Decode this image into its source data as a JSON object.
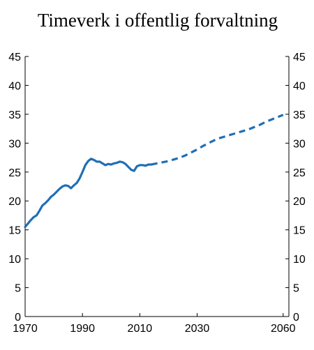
{
  "chart_data": {
    "type": "line",
    "title": "Timeverk i offentlig forvaltning",
    "xlabel": "",
    "ylabel": "",
    "xlim": [
      1970,
      2062
    ],
    "ylim": [
      0,
      45
    ],
    "x_ticks": [
      1970,
      1990,
      2010,
      2030,
      2060
    ],
    "y_ticks": [
      0,
      5,
      10,
      15,
      20,
      25,
      30,
      35,
      40,
      45
    ],
    "dual_y_axis": true,
    "grid": false,
    "legend": "none",
    "color": "#1f6fb6",
    "series": [
      {
        "style": "solid",
        "x": [
          1970,
          1971,
          1972,
          1973,
          1974,
          1975,
          1976,
          1977,
          1978,
          1979,
          1980,
          1981,
          1982,
          1983,
          1984,
          1985,
          1986,
          1987,
          1988,
          1989,
          1990,
          1991,
          1992,
          1993,
          1994,
          1995,
          1996,
          1997,
          1998,
          1999,
          2000,
          2001,
          2002,
          2003,
          2004,
          2005,
          2006,
          2007,
          2008,
          2009,
          2010,
          2011,
          2012,
          2013,
          2014
        ],
        "y": [
          15.5,
          16.1,
          16.7,
          17.2,
          17.5,
          18.3,
          19.2,
          19.6,
          20.1,
          20.7,
          21.1,
          21.6,
          22.1,
          22.5,
          22.7,
          22.6,
          22.2,
          22.7,
          23.1,
          23.9,
          25.0,
          26.2,
          26.9,
          27.3,
          27.1,
          26.8,
          26.8,
          26.5,
          26.2,
          26.4,
          26.3,
          26.5,
          26.6,
          26.8,
          26.7,
          26.4,
          25.9,
          25.4,
          25.2,
          26.0,
          26.2,
          26.2,
          26.1,
          26.3,
          26.3
        ]
      },
      {
        "style": "dashed",
        "x": [
          2014,
          2016,
          2018,
          2020,
          2022,
          2024,
          2026,
          2028,
          2030,
          2032,
          2034,
          2036,
          2038,
          2040,
          2042,
          2044,
          2046,
          2048,
          2050,
          2052,
          2054,
          2056,
          2058,
          2060
        ],
        "y": [
          26.3,
          26.5,
          26.7,
          26.9,
          27.2,
          27.5,
          27.9,
          28.4,
          28.9,
          29.5,
          30.0,
          30.5,
          30.9,
          31.2,
          31.5,
          31.8,
          32.1,
          32.4,
          32.8,
          33.2,
          33.7,
          34.1,
          34.5,
          34.9
        ]
      }
    ]
  }
}
